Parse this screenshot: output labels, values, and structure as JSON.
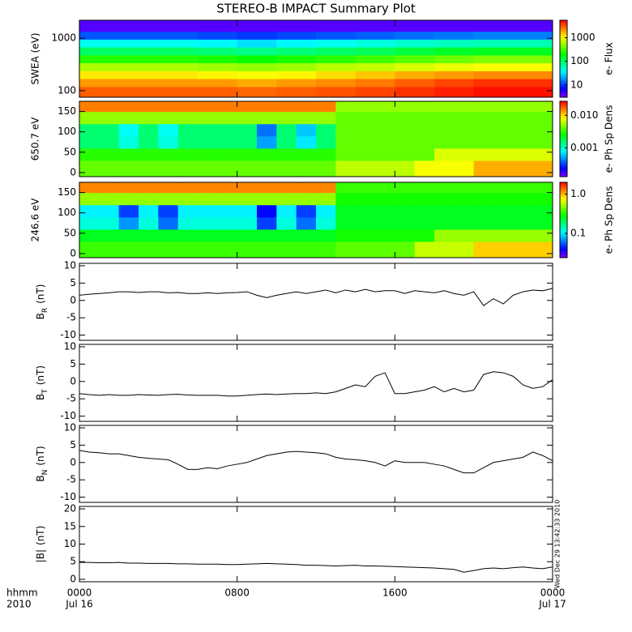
{
  "title": "STEREO-B IMPACT Summary Plot",
  "xlim": [
    0,
    24
  ],
  "xticks": [
    {
      "value": 0,
      "label": "0000"
    },
    {
      "value": 8,
      "label": "0800"
    },
    {
      "value": 16,
      "label": "1600"
    },
    {
      "value": 24,
      "label": "0000"
    }
  ],
  "x_dates": [
    {
      "value": 0,
      "label": "Jul 16"
    },
    {
      "value": 24,
      "label": "Jul 17"
    }
  ],
  "x_axis_labels": [
    "hhmm",
    "2010"
  ],
  "timestamp": "Wed Dec 29 13:42:33 2010",
  "chart_data": [
    {
      "type": "heatmap",
      "ylabel": "SWEA (eV)",
      "log_y": true,
      "ylim": [
        75,
        2200
      ],
      "yticks": [
        100,
        1000
      ],
      "x_bins": [
        0,
        2,
        4,
        6,
        8,
        10,
        12,
        14,
        16,
        18,
        20,
        22,
        24
      ],
      "y_bins": [
        75,
        120,
        170,
        240,
        340,
        480,
        680,
        960,
        1360,
        2200
      ],
      "z": [
        [
          3000,
          3000,
          3000,
          3000,
          2800,
          3000,
          3200,
          3500,
          4000,
          4500,
          5000,
          5000
        ],
        [
          2000,
          2000,
          2000,
          2000,
          1800,
          2000,
          2200,
          2500,
          3000,
          3500,
          4000,
          4000
        ],
        [
          1200,
          1200,
          1200,
          1100,
          1000,
          1100,
          1300,
          1500,
          1800,
          2000,
          2200,
          2200
        ],
        [
          600,
          600,
          600,
          550,
          500,
          550,
          650,
          700,
          800,
          900,
          1000,
          1000
        ],
        [
          250,
          250,
          250,
          230,
          200,
          230,
          260,
          300,
          350,
          400,
          450,
          450
        ],
        [
          100,
          100,
          100,
          90,
          80,
          90,
          100,
          110,
          130,
          150,
          160,
          160
        ],
        [
          40,
          40,
          40,
          35,
          30,
          35,
          40,
          45,
          50,
          55,
          60,
          60
        ],
        [
          12,
          12,
          12,
          11,
          10,
          11,
          12,
          13,
          14,
          15,
          16,
          16
        ],
        [
          4,
          4,
          4,
          4,
          4,
          4,
          4,
          4,
          4,
          4,
          4,
          4
        ]
      ],
      "colormap": "rainbow",
      "log_color": true,
      "clim": [
        3,
        5500
      ],
      "cticks": [
        10,
        100,
        1000
      ],
      "clabel": "e- Flux"
    },
    {
      "type": "heatmap",
      "ylabel": "650.7 eV",
      "log_y": false,
      "ylim": [
        -10,
        175
      ],
      "yticks": [
        0,
        50,
        100,
        150
      ],
      "x_bins": [
        0,
        1,
        2,
        3,
        4,
        5,
        6,
        7,
        8,
        9,
        10,
        11,
        12,
        13,
        14,
        15,
        16,
        17,
        18,
        19,
        20,
        21,
        22,
        23,
        24
      ],
      "y_bins": [
        -10,
        30,
        60,
        90,
        120,
        150,
        175
      ],
      "z": [
        [
          0.004,
          0.004,
          0.004,
          0.004,
          0.004,
          0.004,
          0.004,
          0.004,
          0.004,
          0.004,
          0.004,
          0.004,
          0.004,
          0.006,
          0.006,
          0.006,
          0.006,
          0.008,
          0.008,
          0.008,
          0.012,
          0.012,
          0.012,
          0.012
        ],
        [
          0.003,
          0.003,
          0.003,
          0.003,
          0.003,
          0.003,
          0.003,
          0.003,
          0.003,
          0.003,
          0.003,
          0.003,
          0.003,
          0.004,
          0.004,
          0.004,
          0.004,
          0.004,
          0.007,
          0.007,
          0.007,
          0.007,
          0.007,
          0.007
        ],
        [
          0.0015,
          0.0015,
          0.0009,
          0.0015,
          0.0009,
          0.0015,
          0.0015,
          0.0015,
          0.0015,
          0.0005,
          0.0015,
          0.0007,
          0.0015,
          0.004,
          0.004,
          0.004,
          0.004,
          0.004,
          0.004,
          0.004,
          0.004,
          0.004,
          0.004,
          0.004
        ],
        [
          0.0015,
          0.0015,
          0.0008,
          0.0015,
          0.0008,
          0.0015,
          0.0015,
          0.0015,
          0.0015,
          0.0004,
          0.0015,
          0.0006,
          0.0015,
          0.004,
          0.004,
          0.004,
          0.004,
          0.004,
          0.004,
          0.004,
          0.004,
          0.004,
          0.004,
          0.004
        ],
        [
          0.005,
          0.005,
          0.005,
          0.005,
          0.005,
          0.005,
          0.005,
          0.005,
          0.005,
          0.005,
          0.005,
          0.005,
          0.005,
          0.004,
          0.004,
          0.004,
          0.004,
          0.004,
          0.004,
          0.004,
          0.004,
          0.004,
          0.004,
          0.004
        ],
        [
          0.015,
          0.015,
          0.015,
          0.015,
          0.015,
          0.015,
          0.015,
          0.015,
          0.015,
          0.015,
          0.015,
          0.015,
          0.015,
          0.005,
          0.005,
          0.005,
          0.005,
          0.005,
          0.005,
          0.005,
          0.005,
          0.005,
          0.005,
          0.005
        ]
      ],
      "colormap": "rainbow",
      "log_color": true,
      "clim": [
        0.00013,
        0.027
      ],
      "cticks": [
        0.001,
        {
          "value": 0.01,
          "label": "0.010"
        }
      ],
      "clabel": "e- Ph Sp Dens"
    },
    {
      "type": "heatmap",
      "ylabel": "246.6 eV",
      "log_y": false,
      "ylim": [
        -10,
        175
      ],
      "yticks": [
        0,
        50,
        100,
        150
      ],
      "x_bins": [
        0,
        1,
        2,
        3,
        4,
        5,
        6,
        7,
        8,
        9,
        10,
        11,
        12,
        13,
        14,
        15,
        16,
        17,
        18,
        19,
        20,
        21,
        22,
        23,
        24
      ],
      "y_bins": [
        -10,
        30,
        60,
        90,
        120,
        150,
        175
      ],
      "z": [
        [
          0.35,
          0.35,
          0.35,
          0.35,
          0.35,
          0.35,
          0.35,
          0.35,
          0.35,
          0.35,
          0.35,
          0.35,
          0.35,
          0.4,
          0.4,
          0.4,
          0.4,
          0.6,
          0.6,
          0.6,
          0.9,
          0.9,
          0.9,
          0.9
        ],
        [
          0.25,
          0.25,
          0.25,
          0.25,
          0.25,
          0.25,
          0.25,
          0.25,
          0.25,
          0.25,
          0.25,
          0.25,
          0.25,
          0.3,
          0.3,
          0.3,
          0.3,
          0.3,
          0.5,
          0.5,
          0.5,
          0.5,
          0.5,
          0.5
        ],
        [
          0.12,
          0.12,
          0.07,
          0.12,
          0.06,
          0.12,
          0.12,
          0.12,
          0.12,
          0.05,
          0.12,
          0.06,
          0.12,
          0.25,
          0.25,
          0.25,
          0.25,
          0.25,
          0.25,
          0.25,
          0.25,
          0.25,
          0.25,
          0.25
        ],
        [
          0.1,
          0.1,
          0.05,
          0.1,
          0.05,
          0.1,
          0.1,
          0.1,
          0.1,
          0.04,
          0.1,
          0.05,
          0.1,
          0.25,
          0.25,
          0.25,
          0.25,
          0.25,
          0.25,
          0.25,
          0.25,
          0.25,
          0.25,
          0.25
        ],
        [
          0.5,
          0.5,
          0.5,
          0.5,
          0.5,
          0.5,
          0.5,
          0.5,
          0.5,
          0.5,
          0.5,
          0.5,
          0.5,
          0.3,
          0.3,
          0.3,
          0.3,
          0.3,
          0.3,
          0.3,
          0.3,
          0.3,
          0.3,
          0.3
        ],
        [
          1.2,
          1.2,
          1.2,
          1.2,
          1.2,
          1.2,
          1.2,
          1.2,
          1.2,
          1.2,
          1.2,
          1.2,
          1.2,
          0.35,
          0.35,
          0.35,
          0.35,
          0.35,
          0.35,
          0.35,
          0.35,
          0.35,
          0.35,
          0.35
        ]
      ],
      "colormap": "rainbow",
      "log_color": true,
      "clim": [
        0.024,
        2
      ],
      "cticks": [
        0.1,
        {
          "value": 1,
          "label": "1.0"
        }
      ],
      "clabel": "e- Ph Sp Dens"
    },
    {
      "type": "line",
      "ylabel": {
        "main": "B",
        "sub": "R",
        "unit": "(nT)"
      },
      "ylim": [
        -11.5,
        10.7
      ],
      "yticks": [
        -10,
        -5,
        0,
        5,
        10
      ],
      "color": "#000000",
      "x": [
        0,
        0.5,
        1,
        1.5,
        2,
        2.5,
        3,
        3.5,
        4,
        4.5,
        5,
        5.5,
        6,
        6.5,
        7,
        7.5,
        8,
        8.5,
        9,
        9.5,
        10,
        10.5,
        11,
        11.5,
        12,
        12.5,
        13,
        13.5,
        14,
        14.5,
        15,
        15.5,
        16,
        16.5,
        17,
        17.5,
        18,
        18.5,
        19,
        19.5,
        20,
        20.5,
        21,
        21.5,
        22,
        22.5,
        23,
        23.5,
        24
      ],
      "values": [
        1.5,
        1.8,
        2,
        2.2,
        2.5,
        2.5,
        2.3,
        2.5,
        2.5,
        2.2,
        2.3,
        2,
        2,
        2.2,
        2,
        2.2,
        2.3,
        2.5,
        1.5,
        0.8,
        1.5,
        2,
        2.5,
        2,
        2.5,
        3,
        2.2,
        3,
        2.5,
        3.2,
        2.5,
        2.8,
        2.8,
        2,
        2.8,
        2.5,
        2.2,
        2.8,
        2,
        1.5,
        2.5,
        -1.5,
        0.5,
        -1,
        1.5,
        2.5,
        3,
        2.8,
        3.5
      ]
    },
    {
      "type": "line",
      "ylabel": {
        "main": "B",
        "sub": "T",
        "unit": "(nT)"
      },
      "ylim": [
        -11.5,
        10.7
      ],
      "yticks": [
        -10,
        -5,
        0,
        5,
        10
      ],
      "color": "#000000",
      "x": [
        0,
        0.5,
        1,
        1.5,
        2,
        2.5,
        3,
        3.5,
        4,
        4.5,
        5,
        5.5,
        6,
        6.5,
        7,
        7.5,
        8,
        8.5,
        9,
        9.5,
        10,
        10.5,
        11,
        11.5,
        12,
        12.5,
        13,
        13.5,
        14,
        14.5,
        15,
        15.5,
        16,
        16.5,
        17,
        17.5,
        18,
        18.5,
        19,
        19.5,
        20,
        20.5,
        21,
        21.5,
        22,
        22.5,
        23,
        23.5,
        24
      ],
      "values": [
        -3.5,
        -3.8,
        -4,
        -3.8,
        -4,
        -4,
        -3.8,
        -3.9,
        -4,
        -3.8,
        -3.7,
        -3.9,
        -4,
        -4,
        -4,
        -4.2,
        -4.2,
        -4,
        -3.8,
        -3.6,
        -3.8,
        -3.6,
        -3.5,
        -3.5,
        -3.3,
        -3.5,
        -3,
        -2,
        -1,
        -1.5,
        1.5,
        2.5,
        -3.5,
        -3.5,
        -3,
        -2.5,
        -1.5,
        -3,
        -2,
        -3,
        -2.5,
        2,
        2.8,
        2.5,
        1.5,
        -1,
        -2,
        -1.5,
        0.5
      ]
    },
    {
      "type": "line",
      "ylabel": {
        "main": "B",
        "sub": "N",
        "unit": "(nT)"
      },
      "ylim": [
        -11.5,
        10.7
      ],
      "yticks": [
        -10,
        -5,
        0,
        5,
        10
      ],
      "color": "#000000",
      "x": [
        0,
        0.5,
        1,
        1.5,
        2,
        2.5,
        3,
        3.5,
        4,
        4.5,
        5,
        5.5,
        6,
        6.5,
        7,
        7.5,
        8,
        8.5,
        9,
        9.5,
        10,
        10.5,
        11,
        11.5,
        12,
        12.5,
        13,
        13.5,
        14,
        14.5,
        15,
        15.5,
        16,
        16.5,
        17,
        17.5,
        18,
        18.5,
        19,
        19.5,
        20,
        20.5,
        21,
        21.5,
        22,
        22.5,
        23,
        23.5,
        24
      ],
      "values": [
        3.5,
        3,
        2.8,
        2.5,
        2.5,
        2,
        1.5,
        1.2,
        1,
        0.8,
        -0.5,
        -2,
        -2,
        -1.5,
        -1.8,
        -1,
        -0.5,
        0,
        1,
        2,
        2.5,
        3,
        3.2,
        3,
        2.8,
        2.5,
        1.5,
        1,
        0.8,
        0.5,
        0,
        -1,
        0.5,
        0,
        0,
        0,
        -0.5,
        -1,
        -2,
        -3,
        -3,
        -1.5,
        0,
        0.5,
        1,
        1.5,
        3,
        2,
        0.5
      ]
    },
    {
      "type": "line",
      "ylabel": {
        "main": "|B|",
        "unit": "(nT)"
      },
      "ylim": [
        -0.7,
        20.7
      ],
      "yticks": [
        0,
        5,
        10,
        15,
        20
      ],
      "color": "#000000",
      "x": [
        0,
        0.5,
        1,
        1.5,
        2,
        2.5,
        3,
        3.5,
        4,
        4.5,
        5,
        5.5,
        6,
        6.5,
        7,
        7.5,
        8,
        8.5,
        9,
        9.5,
        10,
        10.5,
        11,
        11.5,
        12,
        12.5,
        13,
        13.5,
        14,
        14.5,
        15,
        15.5,
        16,
        16.5,
        17,
        17.5,
        18,
        18.5,
        19,
        19.5,
        20,
        20.5,
        21,
        21.5,
        22,
        22.5,
        23,
        23.5,
        24
      ],
      "values": [
        4.8,
        4.8,
        4.7,
        4.7,
        4.8,
        4.6,
        4.6,
        4.5,
        4.5,
        4.5,
        4.4,
        4.4,
        4.3,
        4.3,
        4.3,
        4.2,
        4.2,
        4.3,
        4.4,
        4.5,
        4.4,
        4.3,
        4.2,
        4.0,
        4.0,
        3.9,
        3.8,
        3.9,
        4.0,
        3.8,
        3.8,
        3.7,
        3.6,
        3.5,
        3.4,
        3.3,
        3.2,
        3.0,
        2.8,
        2.0,
        2.5,
        3.0,
        3.2,
        3.0,
        3.3,
        3.5,
        3.2,
        3.0,
        3.5
      ]
    }
  ]
}
